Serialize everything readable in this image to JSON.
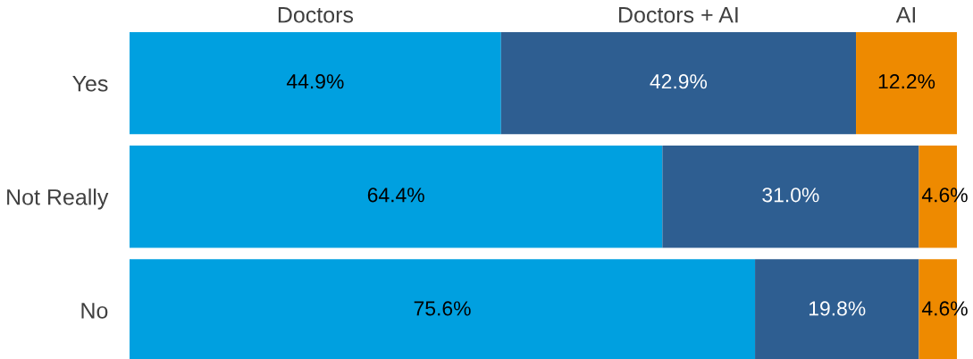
{
  "chart_data": {
    "type": "bar",
    "orientation": "horizontal",
    "stacked": true,
    "tick_labels": "y",
    "xlim": [
      0,
      100
    ],
    "categories": [
      "Yes",
      "Not Really",
      "No"
    ],
    "series": [
      {
        "name": "Doctors",
        "color": "#00a0e0",
        "values": [
          44.9,
          64.4,
          75.6
        ],
        "value_labels": [
          "44.9%",
          "64.4%",
          "75.6%"
        ]
      },
      {
        "name": "Doctors + AI",
        "color": "#2e5e91",
        "values": [
          42.9,
          31.0,
          19.8
        ],
        "value_labels": [
          "42.9%",
          "31.0%",
          "19.8%"
        ]
      },
      {
        "name": "AI",
        "color": "#ee8a00",
        "values": [
          12.2,
          4.6,
          4.6
        ],
        "value_labels": [
          "12.2%",
          "4.6%",
          "4.6%"
        ]
      }
    ]
  }
}
